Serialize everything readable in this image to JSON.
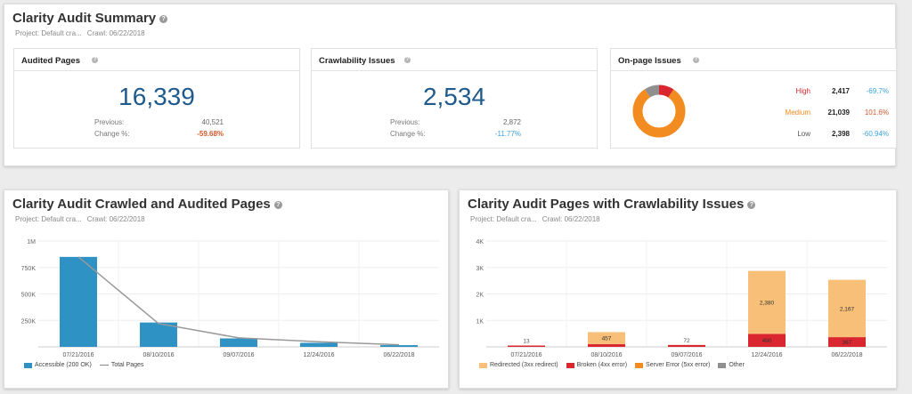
{
  "summary": {
    "title": "Clarity Audit Summary",
    "project_label": "Project: Default cra...",
    "crawl_label": "Crawl: 06/22/2018",
    "audited": {
      "title": "Audited Pages",
      "value": "16,339",
      "previous_label": "Previous:",
      "previous_value": "40,521",
      "change_label": "Change %:",
      "change_value": "-59.68%"
    },
    "crawlability": {
      "title": "Crawlability Issues",
      "value": "2,534",
      "previous_label": "Previous:",
      "previous_value": "2,872",
      "change_label": "Change %:",
      "change_value": "-11.77%"
    },
    "onpage": {
      "title": "On-page Issues",
      "rows": [
        {
          "label": "High",
          "count": "2,417",
          "change": "-69.7%",
          "color": "#d9262f"
        },
        {
          "label": "Medium",
          "count": "21,039",
          "change": "101.6%",
          "color": "#f28b20"
        },
        {
          "label": "Low",
          "count": "2,398",
          "change": "-60.94%",
          "color": "#555555"
        }
      ],
      "donut": [
        {
          "name": "High",
          "value": 2417,
          "color": "#d9262f"
        },
        {
          "name": "Medium",
          "value": 21039,
          "color": "#f28b20"
        },
        {
          "name": "Low",
          "value": 2398,
          "color": "#8f8f8f"
        }
      ]
    }
  },
  "crawled": {
    "title": "Clarity Audit Crawled and Audited Pages",
    "project_label": "Project: Default cra...",
    "crawl_label": "Crawl: 06/22/2018",
    "legend": {
      "bar": "Accessible (200 OK)",
      "line": "Total Pages"
    },
    "colors": {
      "bar": "#2e92c4",
      "line": "#999999"
    }
  },
  "crawl_issues": {
    "title": "Clarity Audit Pages with Crawlability Issues",
    "project_label": "Project: Default cra...",
    "crawl_label": "Crawl: 06/22/2018",
    "legend": [
      {
        "label": "Redirected (3xx redirect)",
        "color": "#f7bf77"
      },
      {
        "label": "Broken (4xx error)",
        "color": "#d9262f"
      },
      {
        "label": "Server Error (5xx error)",
        "color": "#f28b20"
      },
      {
        "label": "Other",
        "color": "#8f8f8f"
      }
    ]
  },
  "chart_data": [
    {
      "type": "bar",
      "title": "Clarity Audit Crawled and Audited Pages",
      "categories": [
        "07/21/2016",
        "08/10/2016",
        "09/07/2016",
        "12/24/2016",
        "06/22/2018"
      ],
      "series": [
        {
          "name": "Accessible (200 OK)",
          "type": "bar",
          "values": [
            850000,
            230000,
            80000,
            38000,
            16339
          ]
        },
        {
          "name": "Total Pages",
          "type": "line",
          "values": [
            850000,
            220000,
            85000,
            48000,
            20000
          ]
        }
      ],
      "yticks": [
        "1M",
        "750K",
        "500K",
        "250K"
      ],
      "ylim": [
        0,
        1000000
      ]
    },
    {
      "type": "bar",
      "title": "Clarity Audit Pages with Crawlability Issues",
      "stacked": true,
      "categories": [
        "07/21/2016",
        "08/10/2016",
        "09/07/2016",
        "12/24/2016",
        "06/22/2018"
      ],
      "series": [
        {
          "name": "Broken (4xx error)",
          "values": [
            13,
            100,
            72,
            490,
            367
          ]
        },
        {
          "name": "Redirected (3xx redirect)",
          "values": [
            0,
            457,
            0,
            2380,
            2167
          ]
        }
      ],
      "labels": [
        [
          [
            "13"
          ],
          []
        ],
        [
          [],
          [
            "457"
          ]
        ],
        [
          [
            "72"
          ],
          []
        ],
        [
          [
            "490"
          ],
          [
            "2,380"
          ]
        ],
        [
          [
            "367"
          ],
          [
            "2,167"
          ]
        ]
      ],
      "yticks": [
        "4K",
        "3K",
        "2K",
        "1K"
      ],
      "ylim": [
        0,
        4000
      ]
    }
  ]
}
